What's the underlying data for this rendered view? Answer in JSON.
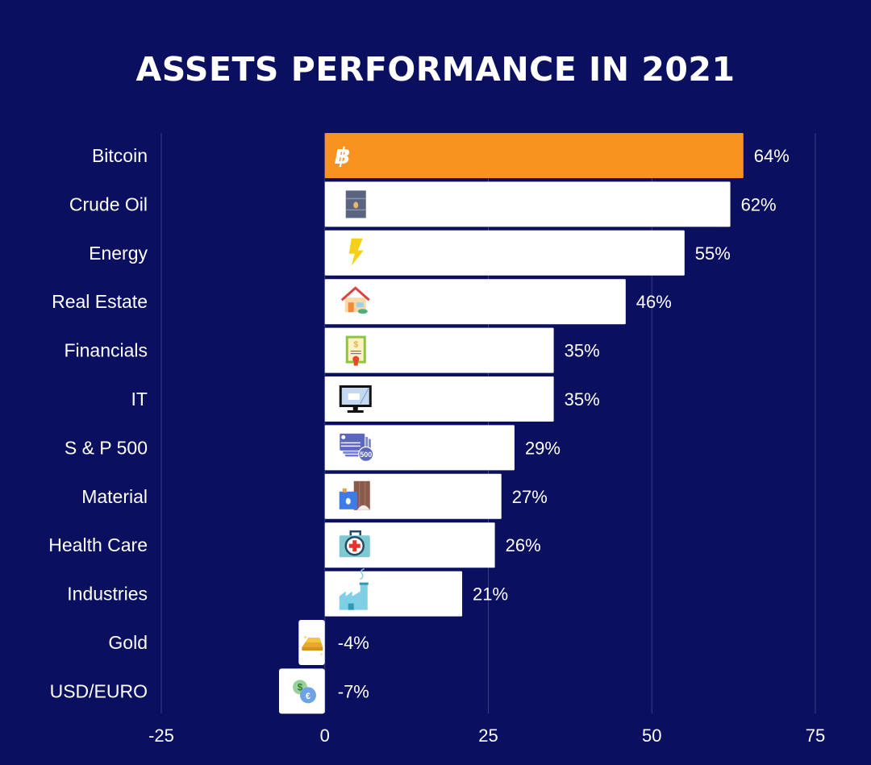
{
  "chart_data": {
    "type": "bar",
    "orientation": "horizontal",
    "title": "ASSETS PERFORMANCE IN 2021",
    "xlabel": "",
    "ylabel": "",
    "xlim": [
      -25,
      75
    ],
    "xticks": [
      -25,
      0,
      25,
      50,
      75
    ],
    "grid": true,
    "value_suffix": "%",
    "categories": [
      "Bitcoin",
      "Crude Oil",
      "Energy",
      "Real Estate",
      "Financials",
      "IT",
      "S & P 500",
      "Material",
      "Health Care",
      "Industries",
      "Gold",
      "USD/EURO"
    ],
    "values": [
      64,
      62,
      55,
      46,
      35,
      35,
      29,
      27,
      26,
      21,
      -4,
      -7
    ],
    "icons": [
      "bitcoin-icon",
      "oil-barrel-icon",
      "lightning-icon",
      "house-icon",
      "certificate-icon",
      "monitor-icon",
      "stock-cards-500-icon",
      "material-icon",
      "first-aid-kit-icon",
      "factory-icon",
      "gold-bars-icon",
      "currency-exchange-icon"
    ],
    "bar_colors": [
      "#f7931e",
      "#ffffff",
      "#ffffff",
      "#ffffff",
      "#ffffff",
      "#ffffff",
      "#ffffff",
      "#ffffff",
      "#ffffff",
      "#ffffff",
      "#ffffff",
      "#ffffff"
    ]
  },
  "colors": {
    "background": "#0a0f5f",
    "gridline": "#3a3f85",
    "highlight": "#f7931e"
  }
}
